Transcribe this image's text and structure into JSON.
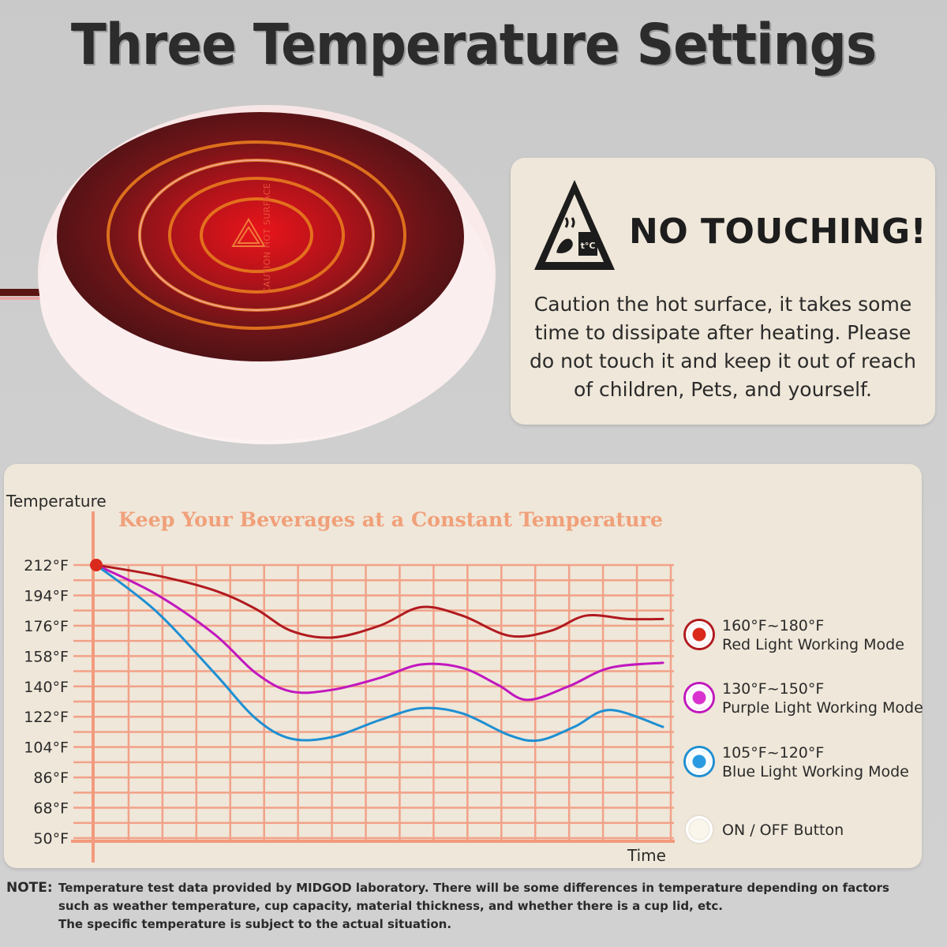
{
  "page_title": "Three Temperature Settings",
  "product": {
    "surface_label": "CAUTION HOT SURFACE"
  },
  "warning": {
    "heading": "NO TOUCHING!",
    "icon_name": "hot-surface-warning-icon",
    "icon_text": "t°C",
    "body_lines": [
      "Caution the hot surface, it takes some",
      "time to dissipate after heating. Please",
      "do not touch it and keep it out of reach",
      "of children, Pets, and yourself."
    ]
  },
  "chart_data": {
    "type": "line",
    "title": "Keep Your Beverages at a Constant Temperature",
    "ylabel": "Temperature",
    "xlabel": "Time",
    "y_ticks": [
      "212°F",
      "194°F",
      "176°F",
      "158°F",
      "140°F",
      "122°F",
      "104°F",
      "86°F",
      "68°F",
      "50°F"
    ],
    "ylim": [
      50,
      212
    ],
    "xlim": [
      0,
      10
    ],
    "grid": true,
    "legend_placement": "right",
    "series": [
      {
        "key": "red",
        "color": "#b11a1f",
        "x": [
          0,
          1,
          2,
          2.7,
          3.3,
          4,
          4.8,
          5.5,
          6.2,
          7,
          7.7,
          8.3,
          9,
          9.6
        ],
        "y": [
          212,
          206,
          197,
          186,
          173,
          169,
          176,
          187,
          182,
          170,
          173,
          182,
          180,
          180
        ]
      },
      {
        "key": "purple",
        "color": "#c117be",
        "x": [
          0,
          1,
          2,
          2.7,
          3.3,
          4,
          4.8,
          5.5,
          6.2,
          6.8,
          7.3,
          8,
          8.7,
          9.6
        ],
        "y": [
          212,
          195,
          171,
          148,
          137,
          138,
          145,
          153,
          151,
          141,
          132,
          140,
          151,
          154
        ]
      },
      {
        "key": "blue",
        "color": "#1e8fd2",
        "x": [
          0,
          1,
          2,
          2.7,
          3.3,
          4,
          4.8,
          5.5,
          6.2,
          7,
          7.5,
          8.1,
          8.7,
          9.6
        ],
        "y": [
          212,
          185,
          148,
          121,
          109,
          110,
          120,
          127,
          124,
          111,
          108,
          116,
          126,
          116
        ]
      }
    ],
    "start_marker_color": "#d9291c"
  },
  "legend": {
    "items": [
      {
        "range": "160°F~180°F",
        "mode": "Red Light Working Mode",
        "color": "#b11a1f",
        "dot_fill": "#d92a1c"
      },
      {
        "range": "130°F~150°F",
        "mode": "Purple Light Working Mode",
        "color": "#c117be",
        "dot_fill": "#d933cf"
      },
      {
        "range": "105°F~120°F",
        "mode": "Blue Light Working Mode",
        "color": "#1e8fd2",
        "dot_fill": "#2a9be0"
      },
      {
        "range": "",
        "mode": "ON / OFF Button",
        "color": "#ffffff",
        "dot_fill": "#fbf6ec"
      }
    ]
  },
  "note": {
    "label": "NOTE:",
    "lines": [
      "Temperature test data provided by MIDGOD laboratory. There will be some differences in temperature depending on factors",
      "such as weather temperature, cup capacity, material thickness, and whether there is a cup lid, etc.",
      "The specific temperature is subject to the actual situation."
    ]
  }
}
